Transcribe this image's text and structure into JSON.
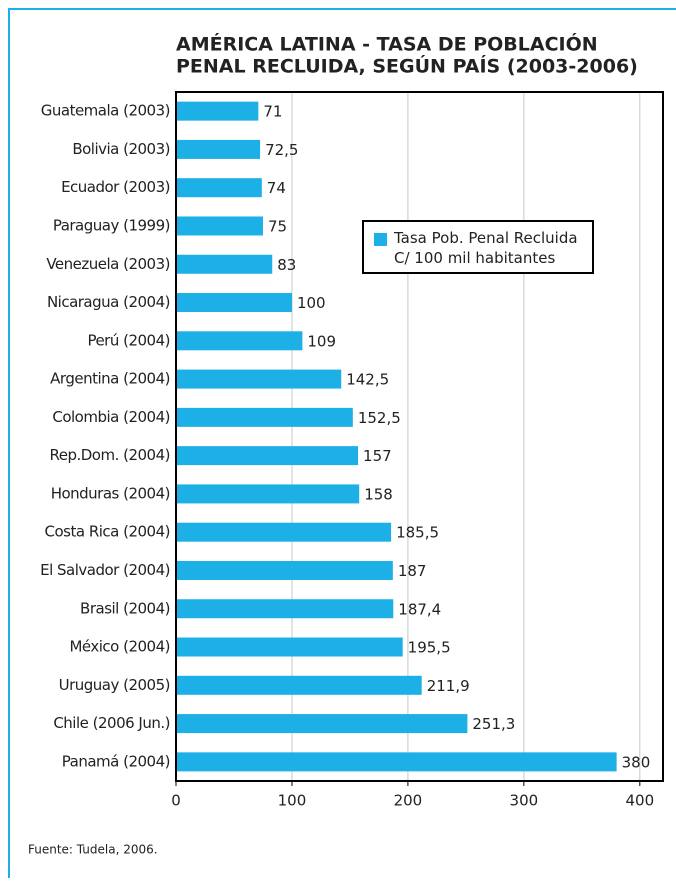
{
  "chart_data": {
    "type": "barh",
    "title": [
      "AMÉRICA LATINA - TASA DE POBLACIÓN",
      "PENAL RECLUIDA, SEGÚN PAÍS (2003-2006)"
    ],
    "categories": [
      "Guatemala (2003)",
      "Bolivia (2003)",
      "Ecuador (2003)",
      "Paraguay (1999)",
      "Venezuela (2003)",
      "Nicaragua (2004)",
      "Perú (2004)",
      "Argentina (2004)",
      "Colombia (2004)",
      "Rep.Dom. (2004)",
      "Honduras (2004)",
      "Costa Rica (2004)",
      "El Salvador (2004)",
      "Brasil (2004)",
      "México (2004)",
      "Uruguay (2005)",
      "Chile (2006 Jun.)",
      "Panamá (2004)"
    ],
    "series": [
      {
        "name": "Tasa Pob. Penal Recluida C/ 100 mil habitantes",
        "color": "#1cb0e6",
        "values": [
          71,
          72.5,
          74,
          75,
          83,
          100,
          109,
          142.5,
          152.5,
          157,
          158,
          185.5,
          187,
          187.4,
          195.5,
          211.9,
          251.3,
          380
        ],
        "value_labels": [
          "71",
          "72,5",
          "74",
          "75",
          "83",
          "100",
          "109",
          "142,5",
          "152,5",
          "157",
          "158",
          "185,5",
          "187",
          "187,4",
          "195,5",
          "211,9",
          "251,3",
          "380"
        ]
      }
    ],
    "xlim": [
      0,
      420
    ],
    "xticks": [
      0,
      100,
      200,
      300,
      400
    ],
    "grid": true,
    "source": "Fuente: Tudela, 2006."
  }
}
